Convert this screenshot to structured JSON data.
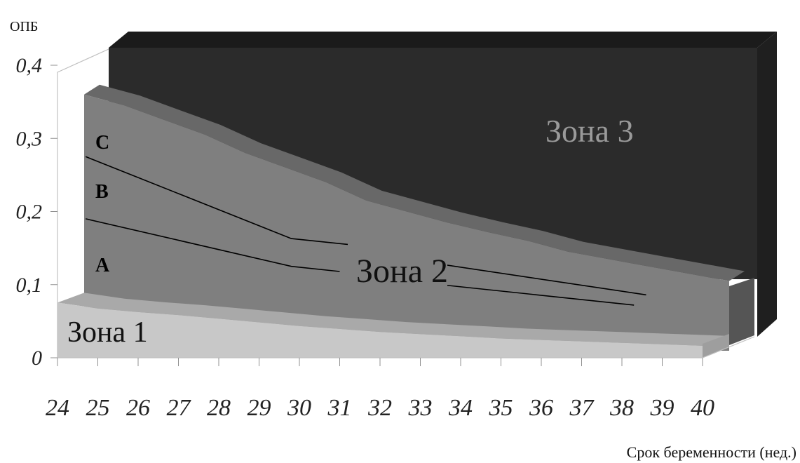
{
  "chart_data": {
    "type": "area",
    "ylabel": "ОПБ",
    "xlabel": "Срок беременности (нед.)",
    "x": [
      24,
      25,
      26,
      27,
      28,
      29,
      30,
      31,
      32,
      33,
      34,
      35,
      36,
      37,
      38,
      39,
      40
    ],
    "ylim": [
      0,
      0.4
    ],
    "y_ticks": [
      "0",
      "0,1",
      "0,2",
      "0,3",
      "0,4"
    ],
    "x_ticks": [
      "24",
      "25",
      "26",
      "27",
      "28",
      "29",
      "30",
      "31",
      "32",
      "33",
      "34",
      "35",
      "36",
      "37",
      "38",
      "39",
      "40"
    ],
    "zones": [
      {
        "name": "Зона 1",
        "upper": [
          0.085,
          0.077,
          0.072,
          0.068,
          0.063,
          0.058,
          0.053,
          0.049,
          0.045,
          0.042,
          0.039,
          0.036,
          0.034,
          0.032,
          0.03,
          0.028,
          0.026
        ]
      },
      {
        "name": "Зона 2",
        "upper": [
          0.36,
          0.345,
          0.325,
          0.305,
          0.28,
          0.26,
          0.24,
          0.215,
          0.2,
          0.185,
          0.172,
          0.16,
          0.145,
          0.135,
          0.125,
          0.115,
          0.105
        ]
      },
      {
        "name": "Зона 3",
        "upper": [
          0.42,
          0.42,
          0.42,
          0.42,
          0.42,
          0.42,
          0.42,
          0.42,
          0.42,
          0.42,
          0.42,
          0.42,
          0.42,
          0.42,
          0.42,
          0.42,
          0.42
        ]
      }
    ],
    "annotations": [
      "A",
      "B",
      "C"
    ],
    "lines": [
      {
        "name": "B",
        "x": [
          24.7,
          29.8,
          31.0
        ],
        "y": [
          0.19,
          0.125,
          0.118
        ]
      },
      {
        "name": "C",
        "x": [
          24.7,
          29.8,
          31.2
        ],
        "y": [
          0.275,
          0.163,
          0.155
        ]
      },
      {
        "name": "lower-right",
        "x": [
          33.5,
          38.3
        ],
        "y": [
          0.1,
          0.072
        ]
      },
      {
        "name": "upper-right",
        "x": [
          33.5,
          38.6
        ],
        "y": [
          0.128,
          0.086
        ]
      }
    ],
    "colors": {
      "zone1": "#c8c8c8",
      "zone1_top": "#a9a9a9",
      "zone2": "#7f7f7f",
      "zone2_top": "#686868",
      "zone3": "#2b2b2b",
      "zone3_top": "#1b1b1b",
      "zone3_side": "#1f1f1f",
      "zone3_label": "#9a9a9a"
    }
  }
}
